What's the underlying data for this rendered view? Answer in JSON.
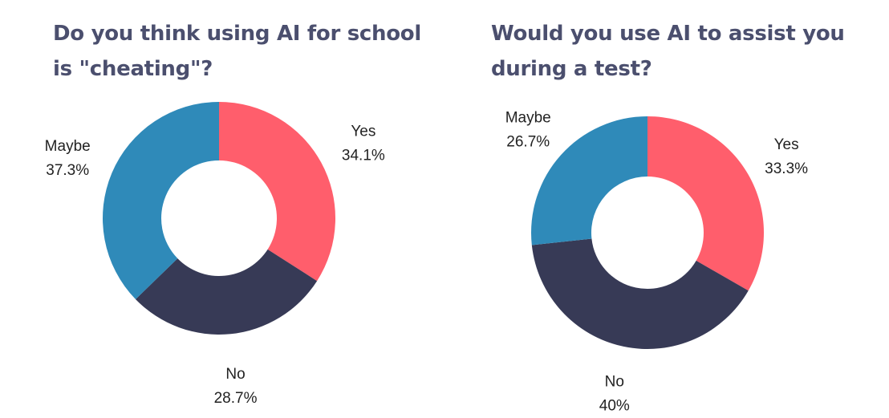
{
  "chart_data": [
    {
      "type": "pie",
      "title": "Do you think using AI for school is \"cheating\"?",
      "categories": [
        "Yes",
        "No",
        "Maybe"
      ],
      "values": [
        34.1,
        28.7,
        37.3
      ],
      "value_labels": [
        "34.1%",
        "28.7%",
        "37.3%"
      ],
      "colors": [
        "#ff5e6c",
        "#373a56",
        "#2f8ab9"
      ],
      "hole": true,
      "legend": "none"
    },
    {
      "type": "pie",
      "title": "Would you use AI to assist you during a test?",
      "categories": [
        "Yes",
        "No",
        "Maybe"
      ],
      "values": [
        33.3,
        40,
        26.7
      ],
      "value_labels": [
        "33.3%",
        "40%",
        "26.7%"
      ],
      "colors": [
        "#ff5e6c",
        "#373a56",
        "#2f8ab9"
      ],
      "hole": true,
      "legend": "none"
    }
  ]
}
